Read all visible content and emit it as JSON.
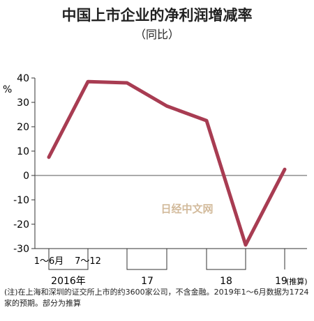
{
  "title": "中国上市企业的净利润增减率",
  "subtitle": "（同比）",
  "watermark": "日经中文网",
  "footnote": "(注)在上海和深圳的证交所上市的约3600家公司，不含金融。2019年1～6月数据为1724家的预期。部分为推算",
  "chart_data": {
    "type": "line",
    "title": "中国上市企业的净利润增减率",
    "subtitle": "（同比）",
    "ylabel": "%",
    "ylim": [
      -30,
      40
    ],
    "yticks": [
      40,
      30,
      20,
      10,
      0,
      -10,
      -20,
      -30
    ],
    "categories": [
      "2016年 1～6月",
      "2016年 7～12",
      "17 1～6月",
      "17 7～12",
      "18 1～6月",
      "18 7～12",
      "19 1～6月(推算)"
    ],
    "values": [
      7.5,
      38.5,
      38,
      28.5,
      22.5,
      -28.5,
      2.5
    ],
    "line_color": "#a83c52",
    "period_labels": [
      "1～6月",
      "7～12"
    ],
    "year_labels": [
      "2016年",
      "17",
      "18",
      "19"
    ],
    "estimate_note": "(推算)",
    "grid": false,
    "zero_line": true
  }
}
